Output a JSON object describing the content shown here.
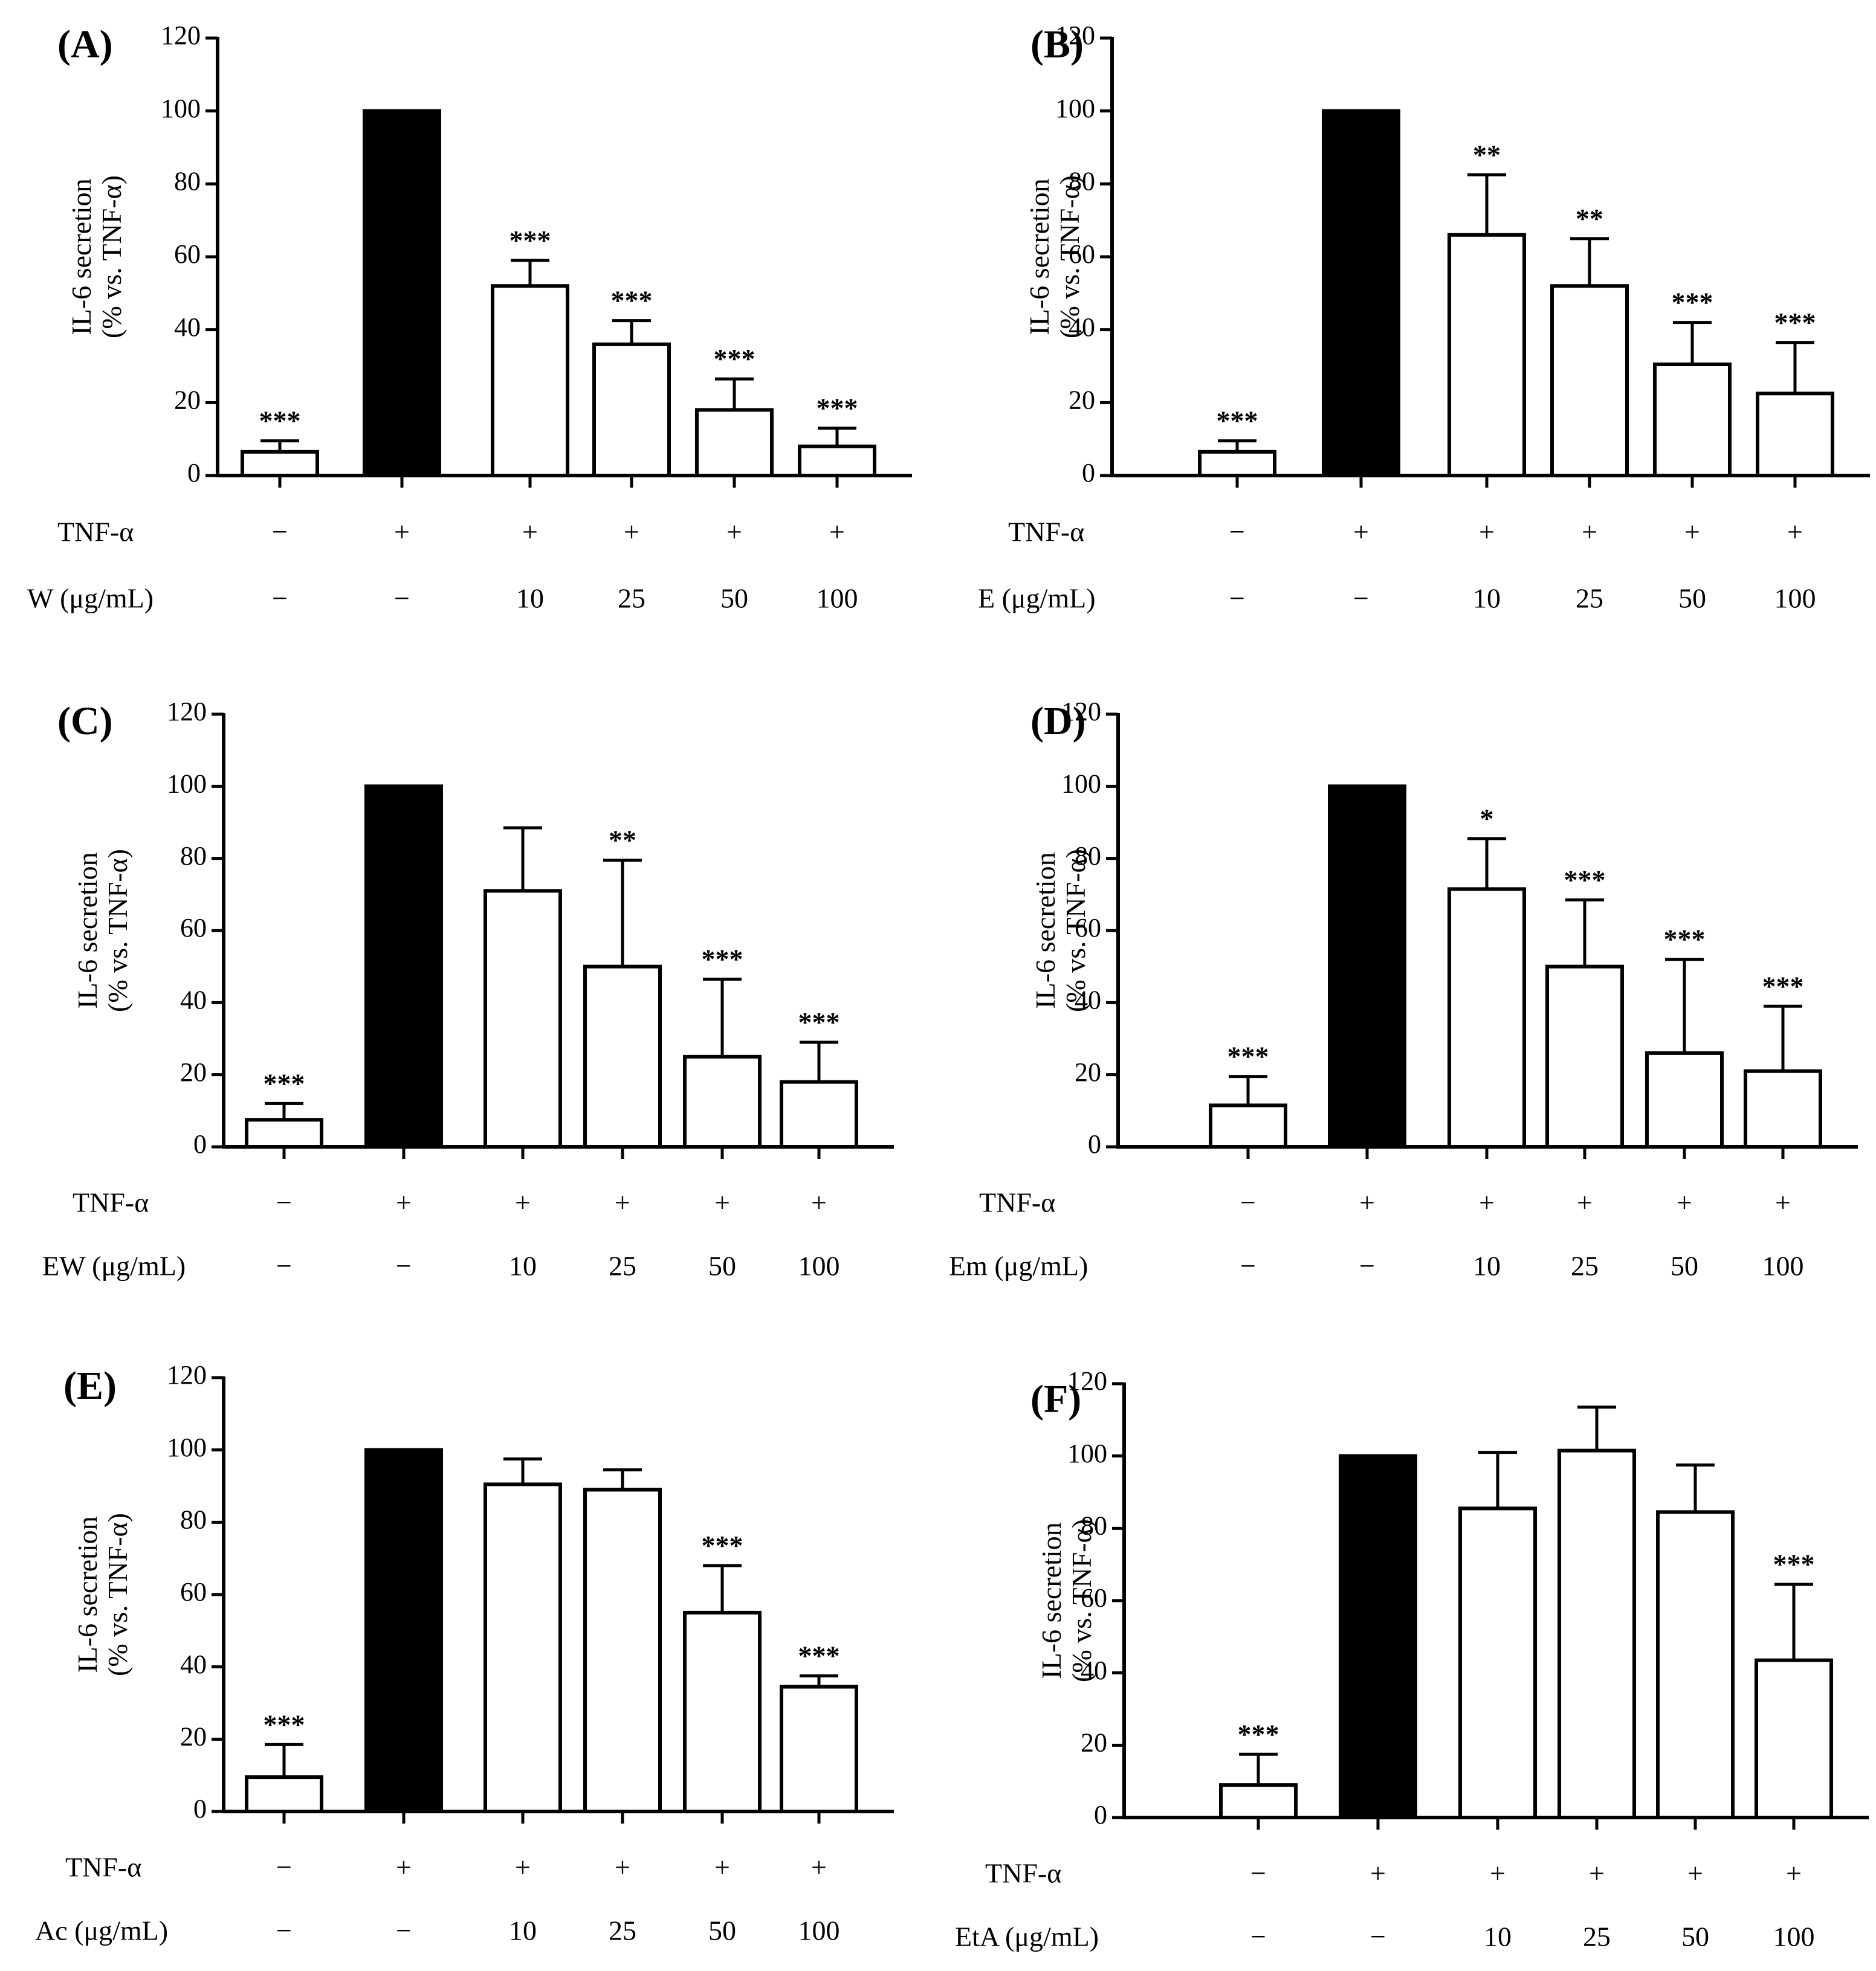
{
  "chart_data": [
    {
      "type": "bar",
      "panel_label": "(A)",
      "ylabel_line1": "IL-6 secretion",
      "ylabel_line2": "(% vs. TNF-α)",
      "ylim": [
        0,
        120
      ],
      "yticks": [
        "0",
        "20",
        "40",
        "60",
        "80",
        "100",
        "120"
      ],
      "values": [
        6.5,
        100,
        52,
        36,
        18,
        8
      ],
      "errors": [
        3,
        0,
        7,
        6.5,
        8.5,
        5
      ],
      "significance": [
        "***",
        "",
        "***",
        "***",
        "***",
        "***"
      ],
      "bar_fill": [
        "white",
        "black",
        "white",
        "white",
        "white",
        "white"
      ],
      "row1_label": "TNF-α",
      "row1": [
        "−",
        "+",
        "+",
        "+",
        "+",
        "+"
      ],
      "row2_label": "W (μg/mL)",
      "row2": [
        "−",
        "−",
        "10",
        "25",
        "50",
        "100"
      ]
    },
    {
      "type": "bar",
      "panel_label": "(B)",
      "ylabel_line1": "IL-6 secretion",
      "ylabel_line2": "(% vs. TNF-α)",
      "ylim": [
        0,
        120
      ],
      "yticks": [
        "0",
        "20",
        "40",
        "60",
        "80",
        "100",
        "120"
      ],
      "values": [
        6.5,
        100,
        66,
        52,
        30.5,
        22.5
      ],
      "errors": [
        3,
        0,
        16.5,
        13,
        11.5,
        14
      ],
      "significance": [
        "***",
        "",
        "**",
        "**",
        "***",
        "***"
      ],
      "bar_fill": [
        "white",
        "black",
        "white",
        "white",
        "white",
        "white"
      ],
      "row1_label": "TNF-α",
      "row1": [
        "−",
        "+",
        "+",
        "+",
        "+",
        "+"
      ],
      "row2_label": "E (μg/mL)",
      "row2": [
        "−",
        "−",
        "10",
        "25",
        "50",
        "100"
      ]
    },
    {
      "type": "bar",
      "panel_label": "(C)",
      "ylabel_line1": "IL-6 secretion",
      "ylabel_line2": "(% vs. TNF-α)",
      "ylim": [
        0,
        120
      ],
      "yticks": [
        "0",
        "20",
        "40",
        "60",
        "80",
        "100",
        "120"
      ],
      "values": [
        7.5,
        100,
        71,
        50,
        25,
        18
      ],
      "errors": [
        4.5,
        0,
        17.5,
        29.5,
        21.5,
        11
      ],
      "significance": [
        "***",
        "",
        "",
        "**",
        "***",
        "***"
      ],
      "bar_fill": [
        "white",
        "black",
        "white",
        "white",
        "white",
        "white"
      ],
      "row1_label": "TNF-α",
      "row1": [
        "−",
        "+",
        "+",
        "+",
        "+",
        "+"
      ],
      "row2_label": "EW (μg/mL)",
      "row2": [
        "−",
        "−",
        "10",
        "25",
        "50",
        "100"
      ]
    },
    {
      "type": "bar",
      "panel_label": "(D)",
      "ylabel_line1": "IL-6 secretion",
      "ylabel_line2": "(% vs. TNF-α)",
      "ylim": [
        0,
        120
      ],
      "yticks": [
        "0",
        "20",
        "40",
        "60",
        "80",
        "100",
        "120"
      ],
      "values": [
        11.5,
        100,
        71.5,
        50,
        26,
        21
      ],
      "errors": [
        8,
        0,
        14,
        18.5,
        26,
        18
      ],
      "significance": [
        "***",
        "",
        "*",
        "***",
        "***",
        "***"
      ],
      "bar_fill": [
        "white",
        "black",
        "white",
        "white",
        "white",
        "white"
      ],
      "row1_label": "TNF-α",
      "row1": [
        "−",
        "+",
        "+",
        "+",
        "+",
        "+"
      ],
      "row2_label": "Em (μg/mL)",
      "row2": [
        "−",
        "−",
        "10",
        "25",
        "50",
        "100"
      ]
    },
    {
      "type": "bar",
      "panel_label": "(E)",
      "ylabel_line1": "IL-6 secretion",
      "ylabel_line2": "(% vs. TNF-α)",
      "ylim": [
        0,
        120
      ],
      "yticks": [
        "0",
        "20",
        "40",
        "60",
        "80",
        "100",
        "120"
      ],
      "values": [
        9.5,
        100,
        90.5,
        89,
        55,
        34.5
      ],
      "errors": [
        9,
        0,
        7,
        5.5,
        13,
        3
      ],
      "significance": [
        "***",
        "",
        "",
        "",
        "***",
        "***"
      ],
      "bar_fill": [
        "white",
        "black",
        "white",
        "white",
        "white",
        "white"
      ],
      "row1_label": "TNF-α",
      "row1": [
        "−",
        "+",
        "+",
        "+",
        "+",
        "+"
      ],
      "row2_label": "Ac (μg/mL)",
      "row2": [
        "−",
        "−",
        "10",
        "25",
        "50",
        "100"
      ]
    },
    {
      "type": "bar",
      "panel_label": "(F)",
      "ylabel_line1": "IL-6 secretion",
      "ylabel_line2": "(% vs. TNF-α)",
      "ylim": [
        0,
        120
      ],
      "yticks": [
        "0",
        "20",
        "40",
        "60",
        "80",
        "100",
        "120"
      ],
      "values": [
        9,
        100,
        85.5,
        101.5,
        84.5,
        43.5
      ],
      "errors": [
        8.5,
        0,
        15.5,
        12,
        13,
        21
      ],
      "significance": [
        "***",
        "",
        "",
        "",
        "",
        "***"
      ],
      "bar_fill": [
        "white",
        "black",
        "white",
        "white",
        "white",
        "white"
      ],
      "row1_label": "TNF-α",
      "row1": [
        "−",
        "+",
        "+",
        "+",
        "+",
        "+"
      ],
      "row2_label": "EtA (μg/mL)",
      "row2": [
        "−",
        "−",
        "10",
        "25",
        "50",
        "100"
      ]
    }
  ]
}
